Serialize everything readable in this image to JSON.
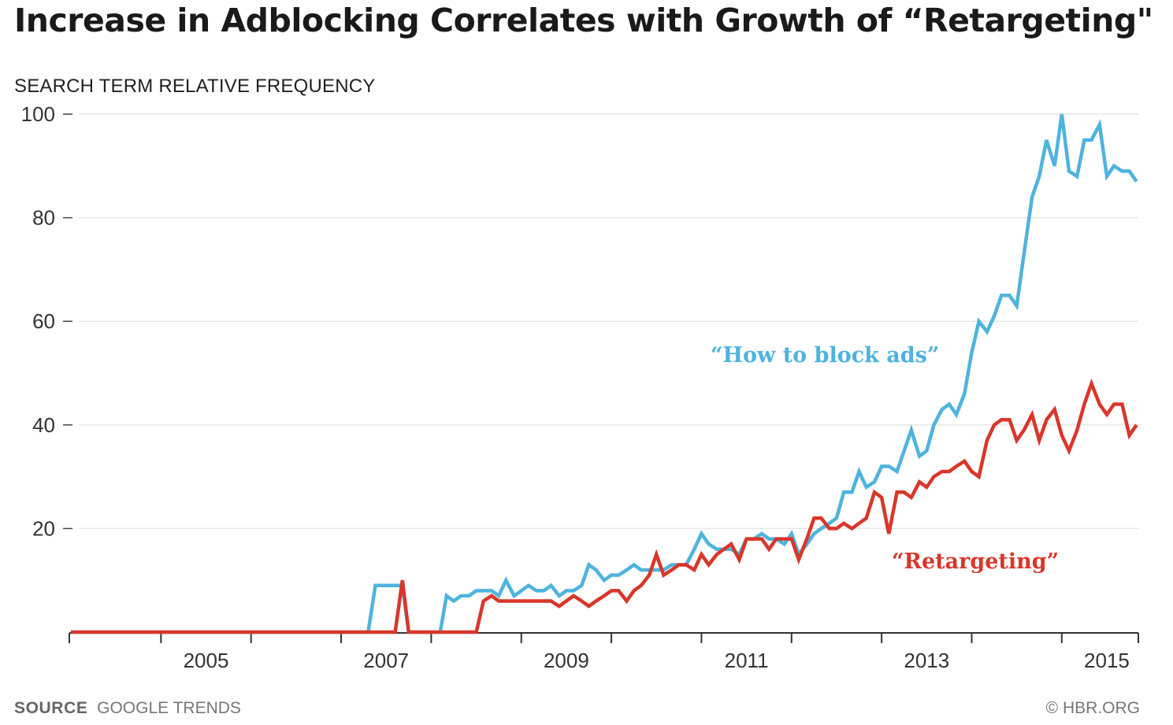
{
  "title": "Increase in Adblocking Correlates with Growth of “Retargeting\"",
  "footer": {
    "source_label": "SOURCE",
    "source_value": "GOOGLE TRENDS",
    "credit": "© HBR.ORG"
  },
  "chart_data": {
    "type": "line",
    "title": "Increase in Adblocking Correlates with Growth of “Retargeting\"",
    "ylabel": "SEARCH TERM RELATIVE FREQUENCY",
    "xlabel": "",
    "xlim": [
      2004.0,
      2015.85
    ],
    "ylim": [
      0,
      100
    ],
    "y_ticks": [
      100,
      80,
      60,
      40,
      20
    ],
    "x_ticks": [
      2005,
      2007,
      2009,
      2011,
      2013,
      2015
    ],
    "grid": true,
    "legend": "inline labels",
    "colors": {
      "blocking": "#4eb3de",
      "retargeting": "#d8372a"
    },
    "series": [
      {
        "name": "“How to block ads”",
        "color": "#4eb3de",
        "points": [
          [
            2004.0,
            0
          ],
          [
            2007.3,
            0
          ],
          [
            2007.38,
            9
          ],
          [
            2007.6,
            9
          ],
          [
            2007.68,
            9
          ],
          [
            2007.75,
            0
          ],
          [
            2008.1,
            0
          ],
          [
            2008.17,
            7
          ],
          [
            2008.25,
            6
          ],
          [
            2008.33,
            7
          ],
          [
            2008.42,
            7
          ],
          [
            2008.5,
            8
          ],
          [
            2008.58,
            8
          ],
          [
            2008.67,
            8
          ],
          [
            2008.75,
            7
          ],
          [
            2008.83,
            10
          ],
          [
            2008.92,
            7
          ],
          [
            2009.0,
            8
          ],
          [
            2009.08,
            9
          ],
          [
            2009.17,
            8
          ],
          [
            2009.25,
            8
          ],
          [
            2009.33,
            9
          ],
          [
            2009.42,
            7
          ],
          [
            2009.5,
            8
          ],
          [
            2009.58,
            8
          ],
          [
            2009.67,
            9
          ],
          [
            2009.75,
            13
          ],
          [
            2009.83,
            12
          ],
          [
            2009.92,
            10
          ],
          [
            2010.0,
            11
          ],
          [
            2010.08,
            11
          ],
          [
            2010.17,
            12
          ],
          [
            2010.25,
            13
          ],
          [
            2010.33,
            12
          ],
          [
            2010.42,
            12
          ],
          [
            2010.5,
            12
          ],
          [
            2010.58,
            12
          ],
          [
            2010.67,
            13
          ],
          [
            2010.75,
            13
          ],
          [
            2010.83,
            13
          ],
          [
            2010.92,
            16
          ],
          [
            2011.0,
            19
          ],
          [
            2011.08,
            17
          ],
          [
            2011.17,
            16
          ],
          [
            2011.25,
            16
          ],
          [
            2011.33,
            16
          ],
          [
            2011.42,
            15
          ],
          [
            2011.5,
            18
          ],
          [
            2011.58,
            18
          ],
          [
            2011.67,
            19
          ],
          [
            2011.75,
            18
          ],
          [
            2011.83,
            18
          ],
          [
            2011.92,
            17
          ],
          [
            2012.0,
            19
          ],
          [
            2012.08,
            15
          ],
          [
            2012.17,
            17
          ],
          [
            2012.25,
            19
          ],
          [
            2012.33,
            20
          ],
          [
            2012.42,
            21
          ],
          [
            2012.5,
            22
          ],
          [
            2012.58,
            27
          ],
          [
            2012.67,
            27
          ],
          [
            2012.75,
            31
          ],
          [
            2012.83,
            28
          ],
          [
            2012.92,
            29
          ],
          [
            2013.0,
            32
          ],
          [
            2013.08,
            32
          ],
          [
            2013.17,
            31
          ],
          [
            2013.25,
            35
          ],
          [
            2013.33,
            39
          ],
          [
            2013.42,
            34
          ],
          [
            2013.5,
            35
          ],
          [
            2013.58,
            40
          ],
          [
            2013.67,
            43
          ],
          [
            2013.75,
            44
          ],
          [
            2013.83,
            42
          ],
          [
            2013.92,
            46
          ],
          [
            2014.0,
            54
          ],
          [
            2014.08,
            60
          ],
          [
            2014.17,
            58
          ],
          [
            2014.25,
            61
          ],
          [
            2014.33,
            65
          ],
          [
            2014.42,
            65
          ],
          [
            2014.5,
            63
          ],
          [
            2014.58,
            73
          ],
          [
            2014.67,
            84
          ],
          [
            2014.75,
            88
          ],
          [
            2014.83,
            95
          ],
          [
            2014.92,
            90
          ],
          [
            2015.0,
            100
          ],
          [
            2015.08,
            89
          ],
          [
            2015.17,
            88
          ],
          [
            2015.25,
            95
          ],
          [
            2015.33,
            95
          ],
          [
            2015.42,
            98
          ],
          [
            2015.5,
            88
          ],
          [
            2015.58,
            90
          ],
          [
            2015.67,
            89
          ],
          [
            2015.75,
            89
          ],
          [
            2015.83,
            87
          ]
        ]
      },
      {
        "name": "“Retargeting”",
        "color": "#d8372a",
        "points": [
          [
            2004.0,
            0
          ],
          [
            2007.6,
            0
          ],
          [
            2007.68,
            10
          ],
          [
            2007.75,
            0
          ],
          [
            2008.5,
            0
          ],
          [
            2008.58,
            6
          ],
          [
            2008.67,
            7
          ],
          [
            2008.75,
            6
          ],
          [
            2008.83,
            6
          ],
          [
            2008.92,
            6
          ],
          [
            2009.0,
            6
          ],
          [
            2009.08,
            6
          ],
          [
            2009.17,
            6
          ],
          [
            2009.25,
            6
          ],
          [
            2009.33,
            6
          ],
          [
            2009.42,
            5
          ],
          [
            2009.5,
            6
          ],
          [
            2009.58,
            7
          ],
          [
            2009.67,
            6
          ],
          [
            2009.75,
            5
          ],
          [
            2009.83,
            6
          ],
          [
            2009.92,
            7
          ],
          [
            2010.0,
            8
          ],
          [
            2010.08,
            8
          ],
          [
            2010.17,
            6
          ],
          [
            2010.25,
            8
          ],
          [
            2010.33,
            9
          ],
          [
            2010.42,
            11
          ],
          [
            2010.5,
            15
          ],
          [
            2010.58,
            11
          ],
          [
            2010.67,
            12
          ],
          [
            2010.75,
            13
          ],
          [
            2010.83,
            13
          ],
          [
            2010.92,
            12
          ],
          [
            2011.0,
            15
          ],
          [
            2011.08,
            13
          ],
          [
            2011.17,
            15
          ],
          [
            2011.25,
            16
          ],
          [
            2011.33,
            17
          ],
          [
            2011.42,
            14
          ],
          [
            2011.5,
            18
          ],
          [
            2011.58,
            18
          ],
          [
            2011.67,
            18
          ],
          [
            2011.75,
            16
          ],
          [
            2011.83,
            18
          ],
          [
            2011.92,
            18
          ],
          [
            2012.0,
            18
          ],
          [
            2012.08,
            14
          ],
          [
            2012.17,
            18
          ],
          [
            2012.25,
            22
          ],
          [
            2012.33,
            22
          ],
          [
            2012.42,
            20
          ],
          [
            2012.5,
            20
          ],
          [
            2012.58,
            21
          ],
          [
            2012.67,
            20
          ],
          [
            2012.75,
            21
          ],
          [
            2012.83,
            22
          ],
          [
            2012.92,
            27
          ],
          [
            2013.0,
            26
          ],
          [
            2013.08,
            19
          ],
          [
            2013.17,
            27
          ],
          [
            2013.25,
            27
          ],
          [
            2013.33,
            26
          ],
          [
            2013.42,
            29
          ],
          [
            2013.5,
            28
          ],
          [
            2013.58,
            30
          ],
          [
            2013.67,
            31
          ],
          [
            2013.75,
            31
          ],
          [
            2013.83,
            32
          ],
          [
            2013.92,
            33
          ],
          [
            2014.0,
            31
          ],
          [
            2014.08,
            30
          ],
          [
            2014.17,
            37
          ],
          [
            2014.25,
            40
          ],
          [
            2014.33,
            41
          ],
          [
            2014.42,
            41
          ],
          [
            2014.5,
            37
          ],
          [
            2014.58,
            39
          ],
          [
            2014.67,
            42
          ],
          [
            2014.75,
            37
          ],
          [
            2014.83,
            41
          ],
          [
            2014.92,
            43
          ],
          [
            2015.0,
            38
          ],
          [
            2015.08,
            35
          ],
          [
            2015.17,
            39
          ],
          [
            2015.25,
            44
          ],
          [
            2015.33,
            48
          ],
          [
            2015.42,
            44
          ],
          [
            2015.5,
            42
          ],
          [
            2015.58,
            44
          ],
          [
            2015.67,
            44
          ],
          [
            2015.75,
            38
          ],
          [
            2015.83,
            40
          ]
        ]
      }
    ]
  }
}
